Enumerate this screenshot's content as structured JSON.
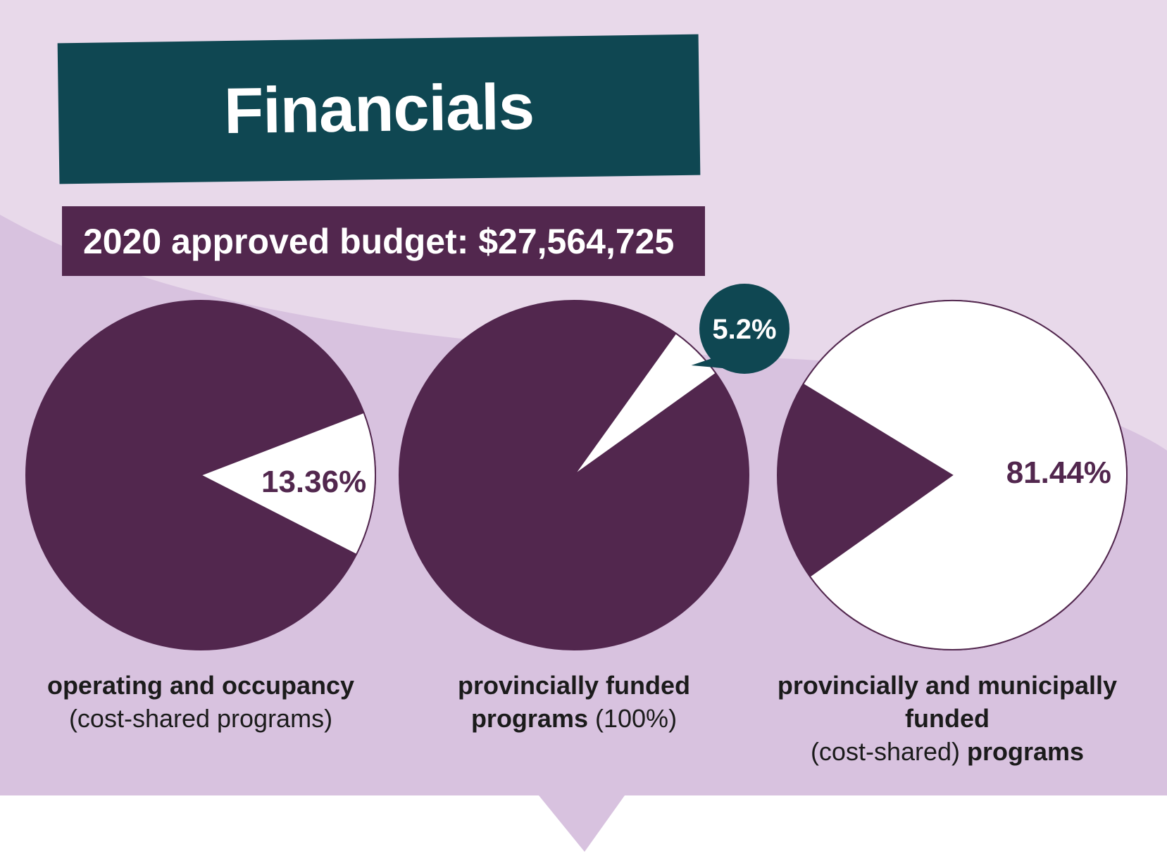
{
  "title": "Financials",
  "budget": "2020 approved budget: $27,564,725",
  "colors": {
    "background_light": "#e8d9ea",
    "background_mid": "#d8c2df",
    "title_bg": "#0f4752",
    "budget_bg": "#52274e",
    "pie_dark": "#52274e",
    "pie_light": "#ffffff",
    "bubble_bg": "#0f4752"
  },
  "chart_data": [
    {
      "type": "pie",
      "title": "",
      "slices": [
        {
          "label": "13.36%",
          "value": 13.36,
          "color": "#ffffff"
        },
        {
          "label": "",
          "value": 86.64,
          "color": "#52274e"
        }
      ],
      "caption": {
        "bold": "operating and occupancy",
        "normal": "(cost-shared programs)"
      }
    },
    {
      "type": "pie",
      "title": "",
      "slices": [
        {
          "label": "5.2%",
          "value": 5.2,
          "color": "#ffffff"
        },
        {
          "label": "",
          "value": 94.8,
          "color": "#52274e"
        }
      ],
      "caption": {
        "bold_1": "provincially funded",
        "bold_2": "programs",
        "normal": "(100%)"
      }
    },
    {
      "type": "pie",
      "title": "",
      "slices": [
        {
          "label": "81.44%",
          "value": 81.44,
          "color": "#ffffff"
        },
        {
          "label": "",
          "value": 18.56,
          "color": "#52274e"
        }
      ],
      "caption": {
        "bold_1": "provincially and municipally funded",
        "normal": "(cost-shared)",
        "bold_2": "programs"
      }
    }
  ]
}
